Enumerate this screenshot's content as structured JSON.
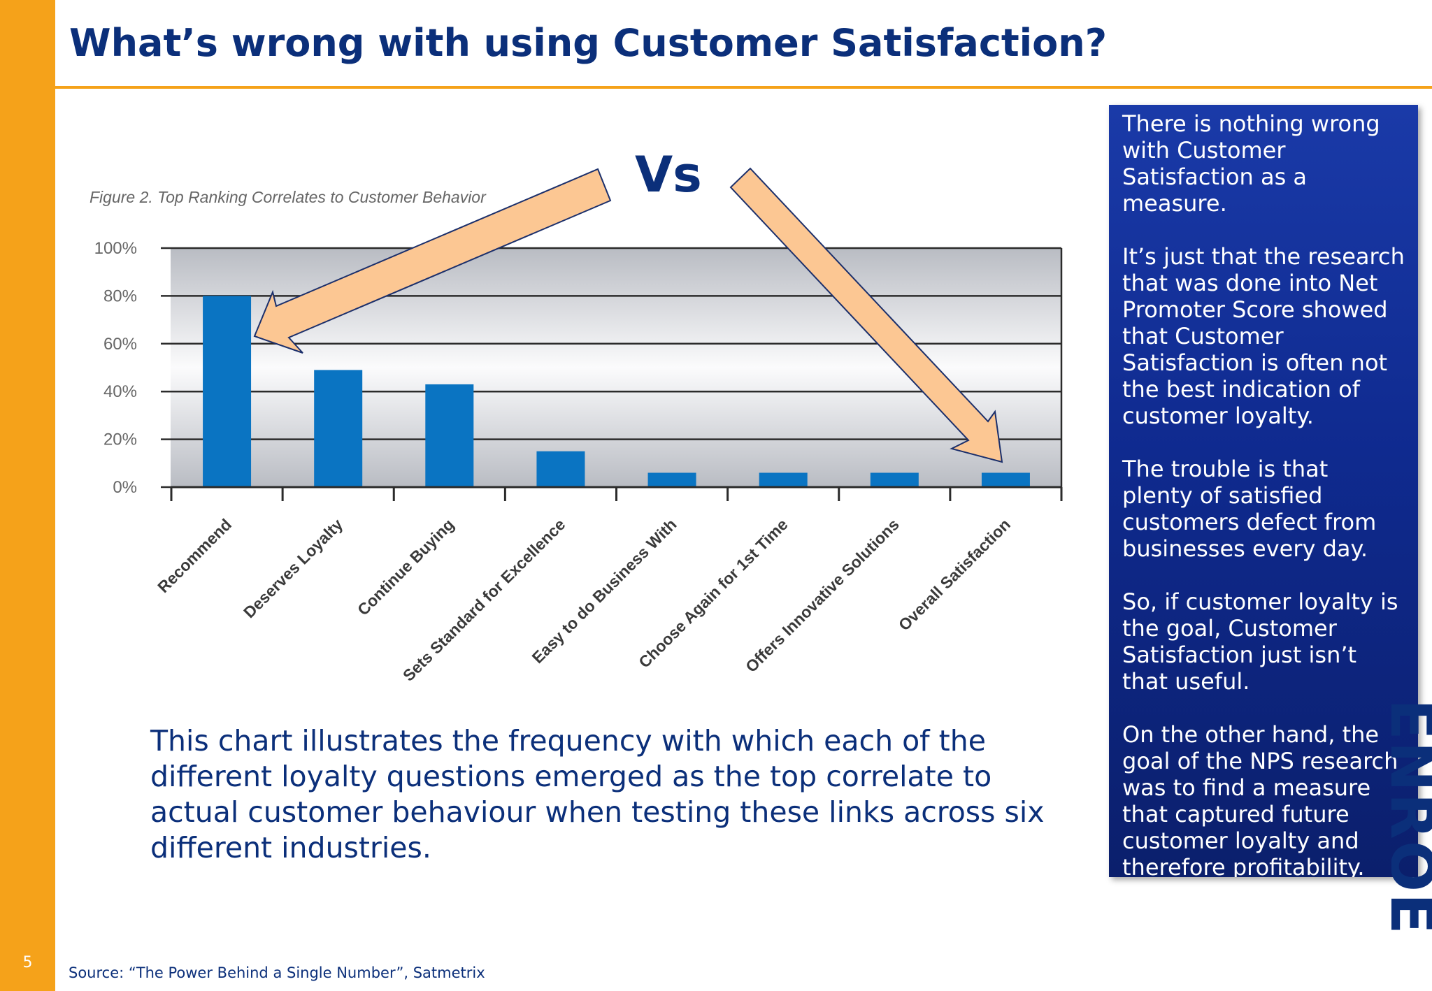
{
  "slide": {
    "title": "What’s wrong with using Customer Satisfaction?",
    "page_number": "5",
    "vs_label": "Vs",
    "caption": "This chart illustrates the frequency with which each of the different loyalty questions emerged as the top correlate to actual customer behaviour when testing these links across six different industries.",
    "source": "Source: “The Power Behind a Single Number”, Satmetrix",
    "logo_text": "ENROE"
  },
  "side_panel": {
    "paragraphs": [
      "There is nothing wrong with Customer Satisfaction as a measure.",
      "It’s just that the research that was done into Net Promoter Score showed that Customer Satisfaction is often not the best indication of customer loyalty.",
      "The trouble is that plenty of satisfied customers defect from businesses every day.",
      "So, if customer loyalty is the goal, Customer Satisfaction just isn’t that useful.",
      "On the other hand, the goal of the NPS research was to find a measure that captured future customer loyalty and therefore  profitability."
    ]
  },
  "colors": {
    "accent_orange": "#f5a21a",
    "title_navy": "#0b2f7a",
    "bar_blue": "#0a74c2",
    "arrow_fill": "#fcc793",
    "panel_blue": "#0f2a8f"
  },
  "chart_data": {
    "type": "bar",
    "title": "Figure 2. Top Ranking Correlates to Customer Behavior",
    "categories": [
      "Recommend",
      "Deserves Loyalty",
      "Continue Buying",
      "Sets Standard for Excellence",
      "Easy to do Business With",
      "Choose Again for 1st Time",
      "Offers Innovative Solutions",
      "Overall Satisfaction"
    ],
    "values": [
      80,
      49,
      43,
      15,
      6,
      6,
      6,
      6
    ],
    "y_ticks": [
      "0%",
      "20%",
      "40%",
      "60%",
      "80%",
      "100%"
    ],
    "ylim": [
      0,
      100
    ],
    "grid": true,
    "annotations": [
      {
        "type": "arrow",
        "points_to": "Recommend"
      },
      {
        "type": "arrow",
        "points_to": "Overall Satisfaction"
      }
    ]
  }
}
